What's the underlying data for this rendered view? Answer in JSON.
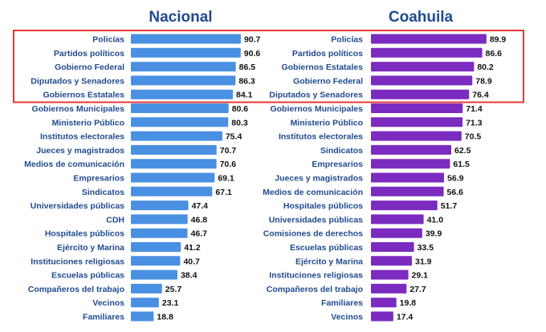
{
  "chart_data": [
    {
      "type": "bar",
      "orientation": "horizontal",
      "title": "Nacional",
      "color": "#4a90e2",
      "xlim": [
        0,
        100
      ],
      "grid": false,
      "categories": [
        "Policías",
        "Partidos políticos",
        "Gobierno Federal",
        "Diputados y Senadores",
        "Gobiernos Estatales",
        "Gobiernos Municipales",
        "Ministerio Público",
        "Institutos electorales",
        "Jueces y magistrados",
        "Medios de comunicación",
        "Empresarios",
        "Sindicatos",
        "Universidades públicas",
        "CDH",
        "Hospitales públicos",
        "Ejército y Marina",
        "Instituciones religiosas",
        "Escuelas públicas",
        "Compañeros del trabajo",
        "Vecinos",
        "Familiares"
      ],
      "values": [
        90.7,
        90.6,
        86.5,
        86.3,
        84.1,
        80.6,
        80.3,
        75.4,
        70.7,
        70.6,
        69.1,
        67.1,
        47.4,
        46.8,
        46.7,
        41.2,
        40.7,
        38.4,
        25.7,
        23.1,
        18.8
      ],
      "value_labels": [
        "90.7",
        "90.6",
        "86.5",
        "86.3",
        "84.1",
        "80.6",
        "80.3",
        "75.4",
        "70.7",
        "70.6",
        "69.1",
        "67.1",
        "47.4",
        "46.8",
        "46.7",
        "41.2",
        "40.7",
        "38.4",
        "25.7",
        "23.1",
        "18.8"
      ],
      "highlight_top_n": 5
    },
    {
      "type": "bar",
      "orientation": "horizontal",
      "title": "Coahuila",
      "color": "#7b2bbf",
      "xlim": [
        0,
        100
      ],
      "grid": false,
      "categories": [
        "Policías",
        "Partidos políticos",
        "Gobiernos Estatales",
        "Gobierno Federal",
        "Diputados y Senadores",
        "Gobiernos Municipales",
        "Ministerio Público",
        "Institutos electorales",
        "Sindicatos",
        "Empresarios",
        "Jueces y magistrados",
        "Medios de comunicación",
        "Hospitales públicos",
        "Universidades públicas",
        "Comisiones de derechos",
        "Escuelas públicas",
        "Ejército y Marina",
        "Instituciones religiosas",
        "Compañeros del trabajo",
        "Familiares",
        "Vecinos"
      ],
      "values": [
        89.9,
        86.6,
        80.2,
        78.9,
        76.4,
        71.4,
        71.3,
        70.5,
        62.5,
        61.5,
        56.9,
        56.6,
        51.7,
        41.0,
        39.9,
        33.5,
        31.9,
        29.1,
        27.7,
        19.8,
        17.4
      ],
      "value_labels": [
        "89.9",
        "86.6",
        "80.2",
        "78.9",
        "76.4",
        "71.4",
        "71.3",
        "70.5",
        "62.5",
        "61.5",
        "56.9",
        "56.6",
        "51.7",
        "41.0",
        "39.9",
        "33.5",
        "31.9",
        "29.1",
        "27.7",
        "19.8",
        "17.4"
      ],
      "highlight_top_n": 5
    }
  ],
  "colors": {
    "title": "#1f4b8f",
    "category_label": "#1f4b8f",
    "highlight_box": "#e53935"
  }
}
